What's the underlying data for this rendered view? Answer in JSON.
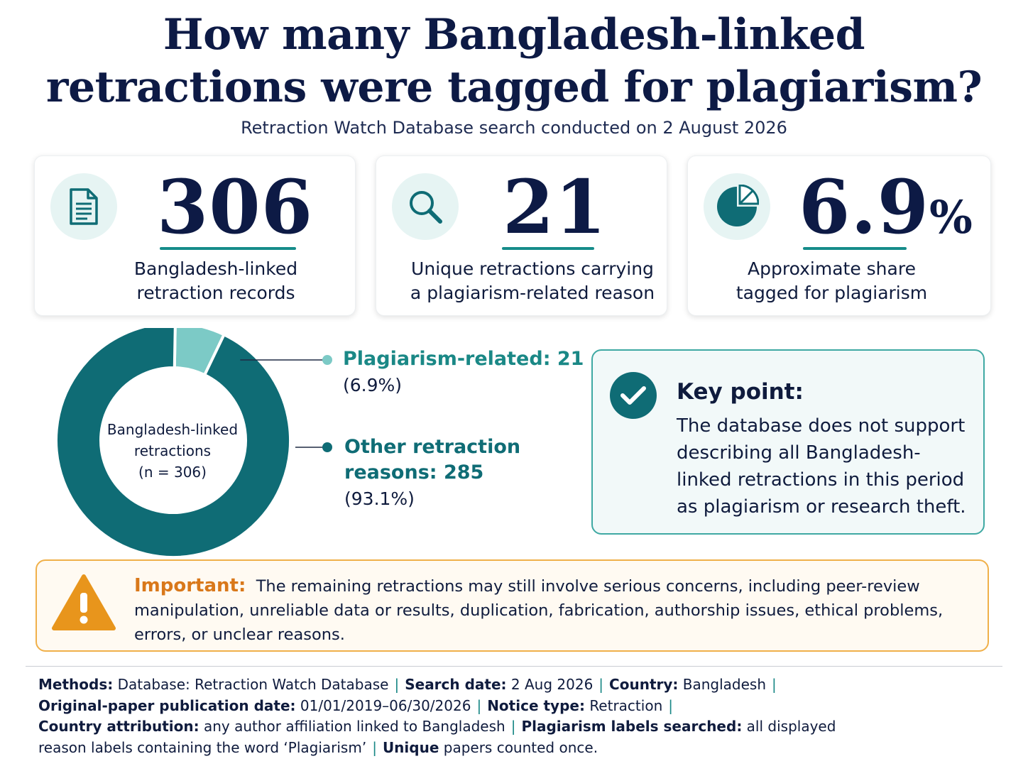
{
  "header": {
    "title_line1": "How many Bangladesh-linked",
    "title_line2": "retractions were tagged for plagiarism?",
    "subtitle": "Retraction Watch Database search conducted on 2 August 2026"
  },
  "stats": [
    {
      "icon": "document-icon",
      "value": "306",
      "label_line1": "Bangladesh-linked",
      "label_line2": "retraction records"
    },
    {
      "icon": "magnifier-icon",
      "value": "21",
      "label_line1": "Unique retractions carrying",
      "label_line2": "a plagiarism-related reason"
    },
    {
      "icon": "pie-chart-icon",
      "value": "6.9",
      "unit": "%",
      "label_line1": "Approximate share",
      "label_line2": "tagged for plagiarism"
    }
  ],
  "chart_data": {
    "type": "pie",
    "donut": true,
    "center_label_line1": "Bangladesh-linked",
    "center_label_line2": "retractions",
    "center_label_line3": "(n = 306)",
    "total": 306,
    "slices": [
      {
        "label": "Plagiarism-related: 21",
        "value": 21,
        "percent_label": "(6.9%)",
        "color": "#7ccac6"
      },
      {
        "label": "Other retraction reasons: 285",
        "value": 285,
        "percent_label": "(93.1%)",
        "color": "#0f6c75"
      }
    ]
  },
  "legend": {
    "item1_title": "Plagiarism-related: 21",
    "item1_pct": "(6.9%)",
    "item2_title": "Other retraction reasons: 285",
    "item2_pct": "(93.1%)"
  },
  "key_point": {
    "title": "Key point:",
    "text": "The database does not support describing all Bangladesh-linked retractions in this period as plagiarism or research theft."
  },
  "important": {
    "lead": "Important:",
    "text": "The remaining retractions may still involve serious concerns, including peer-review manipulation, unreliable data or results, duplication, fabrication, authorship issues, ethical problems, errors, or unclear reasons."
  },
  "methods": {
    "l1_k1": "Methods:",
    "l1_v1": "Database:  Retraction Watch Database",
    "l1_k2": "Search date:",
    "l1_v2": "2 Aug 2026",
    "l1_k3": "Country:",
    "l1_v3": "Bangladesh",
    "l2_k1": "Original-paper publication date:",
    "l2_v1": "01/01/2019–06/30/2026",
    "l2_k2": "Notice type:",
    "l2_v2": "Retraction",
    "l3_k1": "Country attribution:",
    "l3_v1": "any author affiliation linked to Bangladesh",
    "l3_k2": "Plagiarism labels searched:",
    "l3_v2": "all displayed",
    "l4_v1": "reason labels containing the word ‘Plagiarism’",
    "l4_k2": "Unique",
    "l4_v2": "papers counted once."
  },
  "colors": {
    "navy": "#0d1a45",
    "teal": "#0f6c75",
    "light_teal": "#7ccac6",
    "accent_teal": "#1a8886",
    "warning_orange": "#e8951c"
  }
}
